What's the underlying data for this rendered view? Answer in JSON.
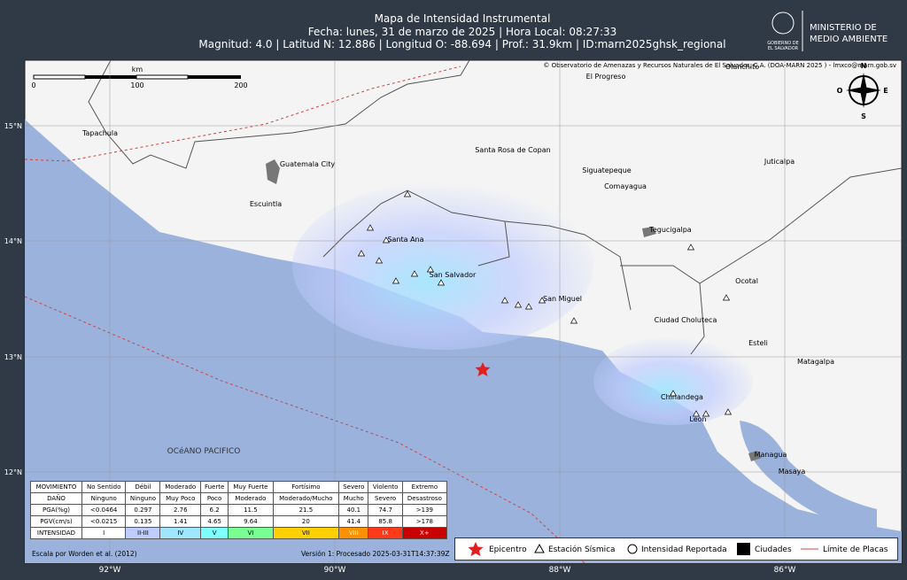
{
  "header": {
    "title": "Mapa de Intensidad Instrumental",
    "line2": "Fecha: lunes, 31 de marzo de 2025 | Hora Local: 08:27:33",
    "line3": "Magnitud: 4.0 | Latitud N: 12.886 | Longitud O: -88.694 | Prof.: 31.9km | ID:marn2025ghsk_regional"
  },
  "logo": {
    "government": [
      "GOBIERNO DE",
      "EL SALVADOR"
    ],
    "ministry": [
      "MINISTERIO DE",
      "MEDIO AMBIENTE"
    ]
  },
  "map": {
    "attribution": "© Observatorio de Amenazas y Recursos Naturales de El Salvador, C.A. (DOA-MARN 2025 ) - lmxco@marn.gob.sv",
    "scale": {
      "unit": "km",
      "ticks": [
        "0",
        "100",
        "200"
      ]
    },
    "compass": [
      "N",
      "S",
      "E",
      "O"
    ],
    "cities": [
      "Olanchito",
      "El Progreso",
      "Tapachula",
      "Santa Rosa de Copan",
      "Siguatepeque",
      "Juticalpa",
      "Guatemala City",
      "Comayagua",
      "Escuintla",
      "Tegucigalpa",
      "Santa Ana",
      "San Salvador",
      "Ocotal",
      "San Miguel",
      "Ciudad Choluteca",
      "Esteli",
      "Matagalpa",
      "Chinandega",
      "Leon",
      "Managua",
      "Masaya"
    ],
    "ocean": "OCéANO PACIFICO",
    "lat_labels": [
      "15°N",
      "14°N",
      "13°N",
      "12°N"
    ],
    "lon_labels": [
      "92°W",
      "90°W",
      "88°W",
      "86°W"
    ]
  },
  "table": {
    "rows": [
      [
        "MOVIMIENTO",
        "No Sentido",
        "Débil",
        "Moderado",
        "Fuerte",
        "Muy Fuerte",
        "Fortísimo",
        "Severo",
        "Violento",
        "Extremo"
      ],
      [
        "DAÑO",
        "Ninguno",
        "Ninguno",
        "Muy Poco",
        "Poco",
        "Moderado",
        "Moderado/Mucho",
        "Mucho",
        "Severo",
        "Desastroso"
      ],
      [
        "PGA(%g)",
        "<0.0464",
        "0.297",
        "2.76",
        "6.2",
        "11.5",
        "21.5",
        "40.1",
        "74.7",
        ">139"
      ],
      [
        "PGV(cm/s)",
        "<0.0215",
        "0.135",
        "1.41",
        "4.65",
        "9.64",
        "20",
        "41.4",
        "85.8",
        ">178"
      ],
      [
        "INTENSIDAD",
        "I",
        "II-III",
        "IV",
        "V",
        "VI",
        "VII",
        "VIII",
        "IX",
        "X+"
      ]
    ]
  },
  "footer": {
    "credit": "Escala por Worden et al. (2012)",
    "version": "Versión 1: Procesado 2025-03-31T14:37:39Z"
  },
  "legend": [
    "Epicentro",
    "Estación Sísmica",
    "Intensidad Reportada",
    "Ciudades",
    "Límite de Placas"
  ]
}
